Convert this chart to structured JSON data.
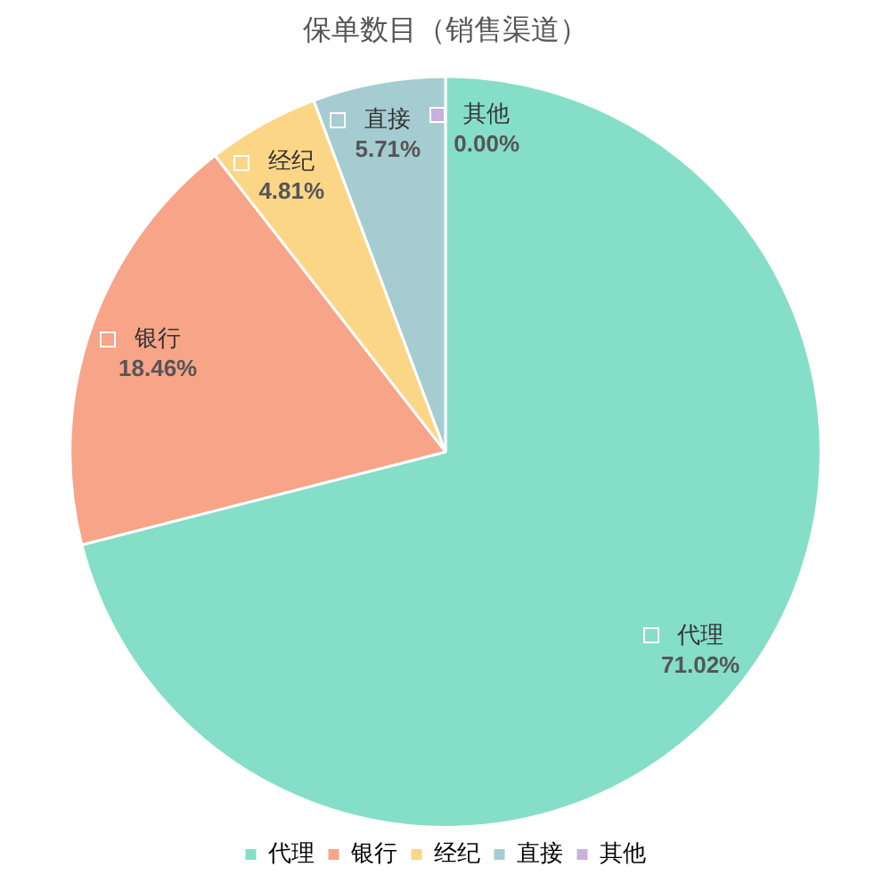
{
  "chart_data": {
    "type": "pie",
    "title": "保单数目（销售渠道）",
    "categories": [
      "代理",
      "银行",
      "经纪",
      "直接",
      "其他"
    ],
    "values": [
      71.02,
      18.46,
      4.81,
      5.71,
      0
    ],
    "colors": [
      "#85dec8",
      "#f7a488",
      "#fbd687",
      "#a5cdd1",
      "#c6b2dc"
    ],
    "value_labels": [
      "71.02%",
      "18.46%",
      "4.81%",
      "5.71%",
      "0.00%"
    ],
    "legend": "bottom"
  }
}
